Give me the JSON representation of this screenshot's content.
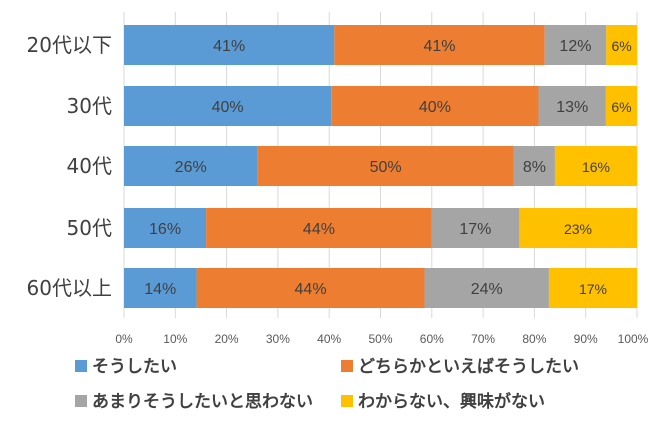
{
  "chart_data": {
    "type": "bar",
    "orientation": "horizontal",
    "stacked": "percent",
    "categories": [
      "20代以下",
      "30代",
      "40代",
      "50代",
      "60代以上"
    ],
    "series": [
      {
        "name": "そうしたい",
        "color": "#5B9BD5",
        "values": [
          41,
          40,
          26,
          16,
          14
        ]
      },
      {
        "name": "どちらかといえばそうしたい",
        "color": "#ED7D31",
        "values": [
          41,
          40,
          50,
          44,
          44
        ]
      },
      {
        "name": "あまりそうしたいと思わない",
        "color": "#A5A5A5",
        "values": [
          12,
          13,
          8,
          17,
          24
        ]
      },
      {
        "name": "わからない、興味がない",
        "color": "#FFC000",
        "values": [
          6,
          6,
          16,
          23,
          17
        ]
      }
    ],
    "data_labels": [
      [
        "41%",
        "41%",
        "12%",
        "6%"
      ],
      [
        "40%",
        "40%",
        "13%",
        "6%"
      ],
      [
        "26%",
        "50%",
        "8%",
        "16%"
      ],
      [
        "16%",
        "44%",
        "17%",
        "23%"
      ],
      [
        "14%",
        "44%",
        "24%",
        "17%"
      ]
    ],
    "xticks": [
      "0%",
      "10%",
      "20%",
      "30%",
      "40%",
      "50%",
      "60%",
      "70%",
      "80%",
      "90%",
      "100%"
    ],
    "xlim": [
      0,
      100
    ],
    "grid": true,
    "legend": "bottom",
    "title": "",
    "xlabel": "",
    "ylabel": ""
  }
}
